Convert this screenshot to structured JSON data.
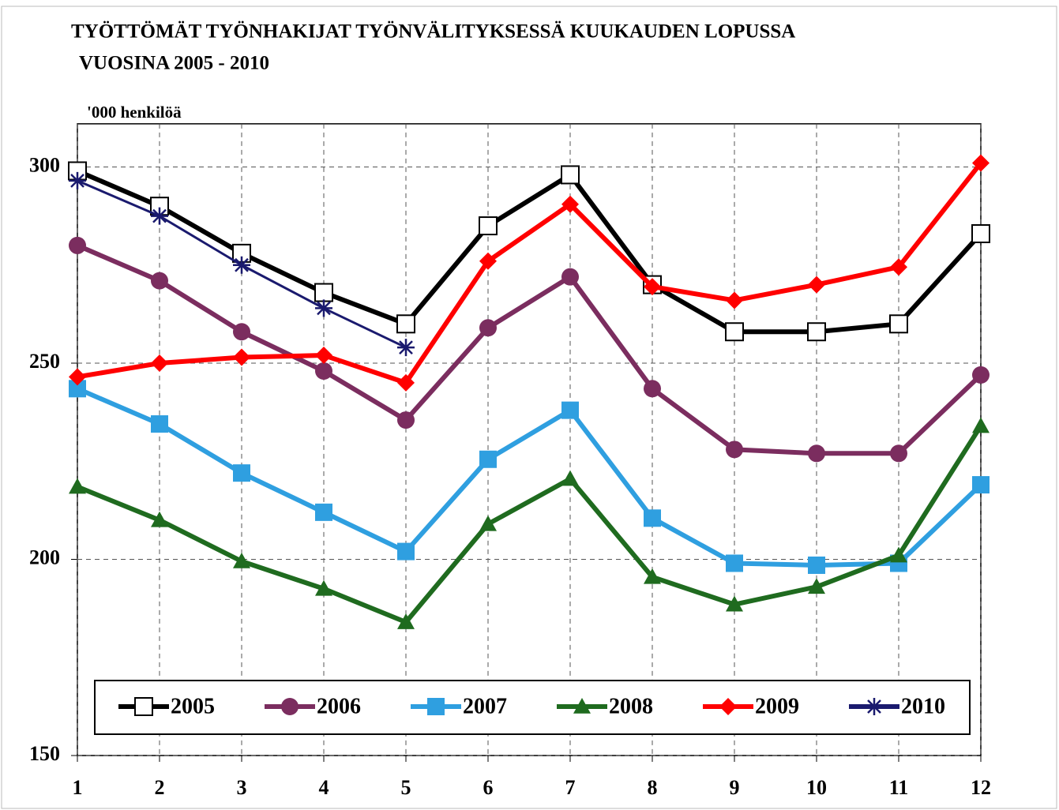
{
  "chart_data": {
    "type": "line",
    "title": "TYÖTTÖMÄT TYÖNHAKIJAT TYÖNVÄLITYKSESSÄ KUUKAUDEN LOPUSSA",
    "subtitle": "VUOSINA 2005 - 2010",
    "y_label": "'000 henkilöä",
    "x": [
      1,
      2,
      3,
      4,
      5,
      6,
      7,
      8,
      9,
      10,
      11,
      12
    ],
    "xlim": [
      1,
      12
    ],
    "xticks": [
      1,
      2,
      3,
      4,
      5,
      6,
      7,
      8,
      9,
      10,
      11,
      12
    ],
    "ylim": [
      150,
      311
    ],
    "yticks": [
      150,
      200,
      250,
      300
    ],
    "grid": true,
    "legend": "bottom",
    "series": [
      {
        "name": "2005",
        "color": "#000000",
        "marker": "square-open",
        "values": [
          299,
          290,
          278,
          268,
          260,
          285,
          298,
          270,
          258,
          258,
          260,
          283
        ]
      },
      {
        "name": "2006",
        "color": "#7b2d5f",
        "marker": "circle",
        "values": [
          280,
          271,
          258,
          248,
          235.5,
          259,
          272,
          243.5,
          228,
          227,
          227,
          247
        ]
      },
      {
        "name": "2007",
        "color": "#2f9fe0",
        "marker": "square",
        "values": [
          243.5,
          234.5,
          222,
          212,
          202,
          225.5,
          238,
          210.5,
          199,
          198.5,
          199,
          219
        ]
      },
      {
        "name": "2008",
        "color": "#1f6b1f",
        "marker": "triangle",
        "values": [
          218.5,
          210,
          199.5,
          192.5,
          184,
          209,
          220.5,
          195.5,
          188.5,
          193,
          201,
          234
        ]
      },
      {
        "name": "2009",
        "color": "#ff0000",
        "marker": "diamond",
        "values": [
          246.5,
          250,
          251.5,
          252,
          245,
          276,
          290.5,
          269.5,
          266,
          270,
          274.5,
          301
        ]
      },
      {
        "name": "2010",
        "color": "#1a1a6e",
        "marker": "star",
        "values": [
          296.5,
          287.5,
          275,
          264,
          254,
          null,
          null,
          null,
          null,
          null,
          null,
          null
        ]
      }
    ]
  }
}
